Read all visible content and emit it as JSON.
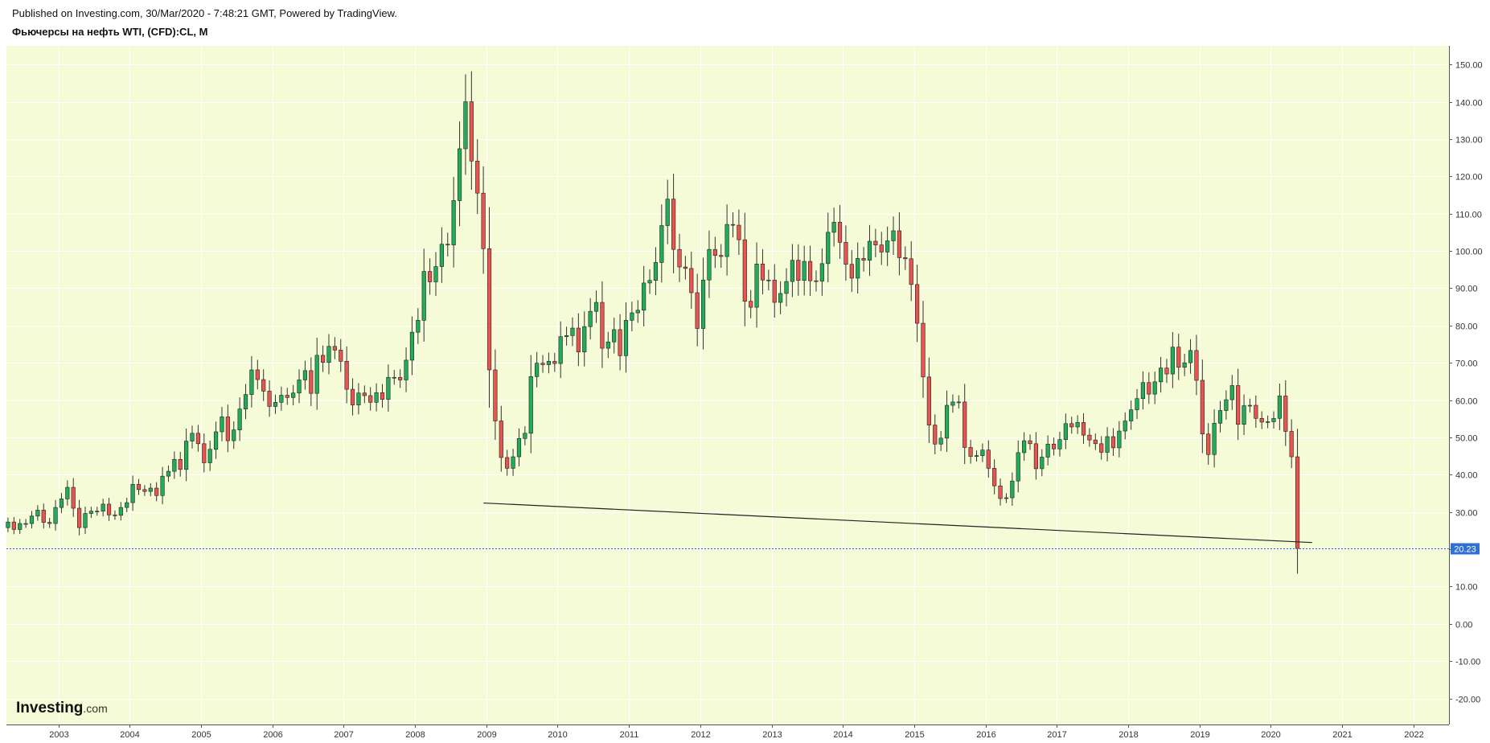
{
  "header": {
    "published": "Published on Investing.com, 30/Mar/2020 - 7:48:21 GMT, Powered by TradingView.",
    "title": "Фьючерсы на нефть WTI, (CFD):CL, M"
  },
  "logo": {
    "brand": "Investing",
    "suffix": ".com"
  },
  "colors": {
    "plot_bg": "#f4fbd6",
    "up": "#22ab5a",
    "down": "#e8544f",
    "wick": "#333333",
    "grid": "#ffffff",
    "price_line": "#2f5bd3",
    "last_label_bg": "#2f6fd6",
    "trend": "#222222"
  },
  "chart_data": {
    "type": "candlestick",
    "timeframe": "M",
    "x_range": [
      2002.27,
      2022.5
    ],
    "ylim": [
      -27,
      155
    ],
    "y_ticks": [
      -20,
      -10,
      0,
      10,
      20,
      30,
      40,
      50,
      60,
      70,
      80,
      90,
      100,
      110,
      120,
      130,
      140,
      150
    ],
    "y_tick_labels": [
      "-20.00",
      "-10.00",
      "0.00",
      "10.00",
      "20.00",
      "30.00",
      "40.00",
      "50.00",
      "60.00",
      "70.00",
      "80.00",
      "90.00",
      "100.00",
      "110.00",
      "120.00",
      "130.00",
      "140.00",
      "150.00"
    ],
    "x_ticks": [
      2003,
      2004,
      2005,
      2006,
      2007,
      2008,
      2009,
      2010,
      2011,
      2012,
      2013,
      2014,
      2015,
      2016,
      2017,
      2018,
      2019,
      2020,
      2021,
      2022
    ],
    "x_tick_labels": [
      "2003",
      "2004",
      "2005",
      "2006",
      "2007",
      "2008",
      "2009",
      "2010",
      "2011",
      "2012",
      "2013",
      "2014",
      "2015",
      "2016",
      "2017",
      "2018",
      "2019",
      "2020",
      "2021",
      "2022"
    ],
    "last_price": 20.23,
    "last_price_label": "20.23",
    "monthly_closes_start": "2002-04",
    "monthly_closes": [
      27.3,
      25.3,
      26.9,
      26.9,
      28.9,
      30.5,
      27.2,
      26.9,
      31.2,
      33.5,
      36.6,
      31.0,
      25.8,
      29.6,
      30.2,
      30.2,
      32.1,
      29.2,
      29.1,
      31.2,
      32.5,
      37.4,
      36.0,
      35.5,
      36.4,
      34.4,
      39.6,
      40.9,
      44.1,
      41.4,
      49.0,
      51.1,
      48.3,
      43.2,
      46.8,
      51.5,
      55.5,
      49.1,
      52.0,
      57.6,
      61.5,
      68.1,
      65.5,
      62.4,
      58.3,
      59.4,
      61.3,
      60.7,
      61.9,
      65.4,
      67.9,
      61.8,
      72.0,
      70.1,
      74.4,
      73.4,
      70.4,
      62.9,
      58.7,
      61.9,
      61.2,
      59.4,
      62.0,
      60.2,
      66.1,
      66.1,
      65.4,
      70.7,
      78.2,
      81.4,
      94.5,
      91.7,
      95.8,
      101.8,
      101.6,
      113.5,
      127.4,
      140.0,
      124.1,
      115.5,
      100.6,
      68.1,
      54.4,
      44.6,
      41.7,
      44.8,
      49.7,
      51.1,
      66.3,
      69.9,
      69.5,
      70.4,
      69.8,
      77.0,
      77.3,
      79.3,
      72.9,
      79.7,
      83.8,
      86.2,
      73.9,
      75.6,
      78.9,
      71.9,
      81.4,
      83.4,
      84.1,
      91.4,
      92.1,
      96.9,
      106.8,
      113.9,
      100.4,
      95.7,
      95.3,
      88.8,
      79.2,
      92.2,
      100.4,
      98.8,
      98.5,
      107.1,
      106.9,
      103.0,
      86.5,
      84.9,
      96.5,
      92.2,
      92.2,
      86.2,
      88.6,
      91.8,
      97.5,
      92.1,
      97.2,
      92.0,
      91.9,
      96.6,
      105.0,
      107.7,
      102.3,
      96.4,
      92.7,
      98.0,
      97.5,
      102.6,
      101.6,
      99.7,
      102.7,
      105.4,
      98.2,
      97.9,
      91.0,
      80.6,
      66.2,
      53.3,
      48.2,
      49.8,
      58.6,
      59.5,
      59.5,
      47.3,
      44.9,
      45.1,
      46.6,
      41.7,
      37.0,
      33.6,
      33.8,
      38.3,
      45.9,
      49.1,
      48.3,
      41.6,
      44.7,
      48.2,
      46.9,
      49.4,
      53.7,
      52.8,
      54.0,
      50.6,
      49.3,
      48.3,
      46.0,
      50.2,
      47.2,
      51.7,
      54.4,
      57.4,
      60.4,
      64.7,
      61.6,
      64.9,
      68.6,
      67.0,
      74.2,
      68.8,
      70.0,
      73.3,
      65.3,
      50.9,
      45.4,
      53.8,
      57.2,
      60.1,
      63.9,
      53.5,
      58.5,
      58.6,
      55.1,
      54.1,
      54.2,
      55.1,
      61.1,
      51.6,
      44.8,
      20.2
    ],
    "trend_line": {
      "from": {
        "x": 2008.96,
        "y": 32.4
      },
      "to": {
        "x": 2020.58,
        "y": 21.8
      }
    }
  }
}
